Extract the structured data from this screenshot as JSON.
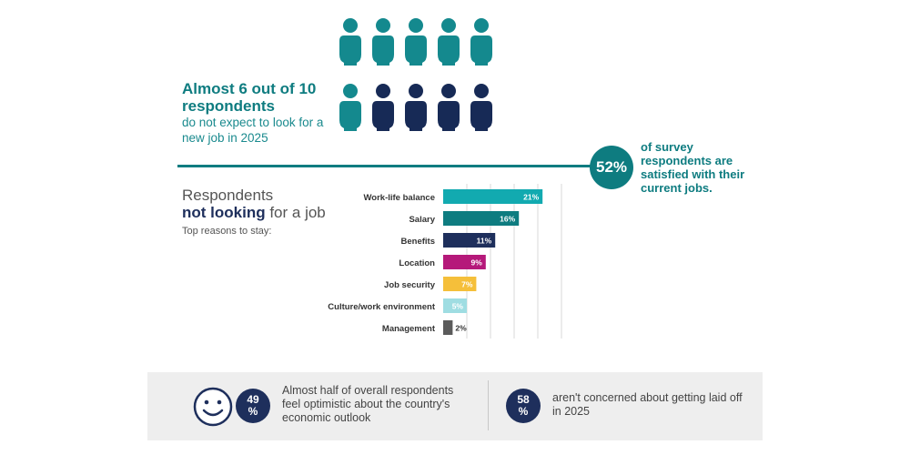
{
  "headline": {
    "strong": "Almost 6 out of 10 respondents",
    "sub": "do not expect to look for a new job in 2025"
  },
  "people_icons": {
    "icon": "person-icon",
    "total": 10,
    "filled_fraction": 0.6,
    "color_teal": "#14898e",
    "color_navy": "#172a56"
  },
  "satisfied": {
    "percent": "52%",
    "text": "of survey respondents are satisfied with their current jobs."
  },
  "section": {
    "title_line1": "Respondents",
    "title_strong": "not looking",
    "title_rest": "for a job",
    "subtitle": "Top reasons to stay:"
  },
  "chart_data": {
    "type": "bar",
    "orientation": "horizontal",
    "categories": [
      "Work-life balance",
      "Salary",
      "Benefits",
      "Location",
      "Job security",
      "Culture/work environment",
      "Management"
    ],
    "values": [
      21,
      16,
      11,
      9,
      7,
      5,
      2
    ],
    "value_labels": [
      "21%",
      "16%",
      "11%",
      "9%",
      "7%",
      "5%",
      "2%"
    ],
    "colors": [
      "#12aab0",
      "#0e7c80",
      "#1e2f5c",
      "#b5197a",
      "#f5bf3a",
      "#9fdde2",
      "#5b5b5b"
    ],
    "xlim": [
      0,
      25
    ],
    "grid": true,
    "title": "",
    "xlabel": "",
    "ylabel": ""
  },
  "banner": {
    "smiley_icon": "smiley-icon",
    "stat1": {
      "num": "49",
      "unit": "%",
      "text": "Almost half of overall respondents feel optimistic about the country's economic outlook"
    },
    "stat2": {
      "num": "58",
      "unit": "%",
      "text": "aren't concerned about getting laid off in 2025"
    }
  }
}
